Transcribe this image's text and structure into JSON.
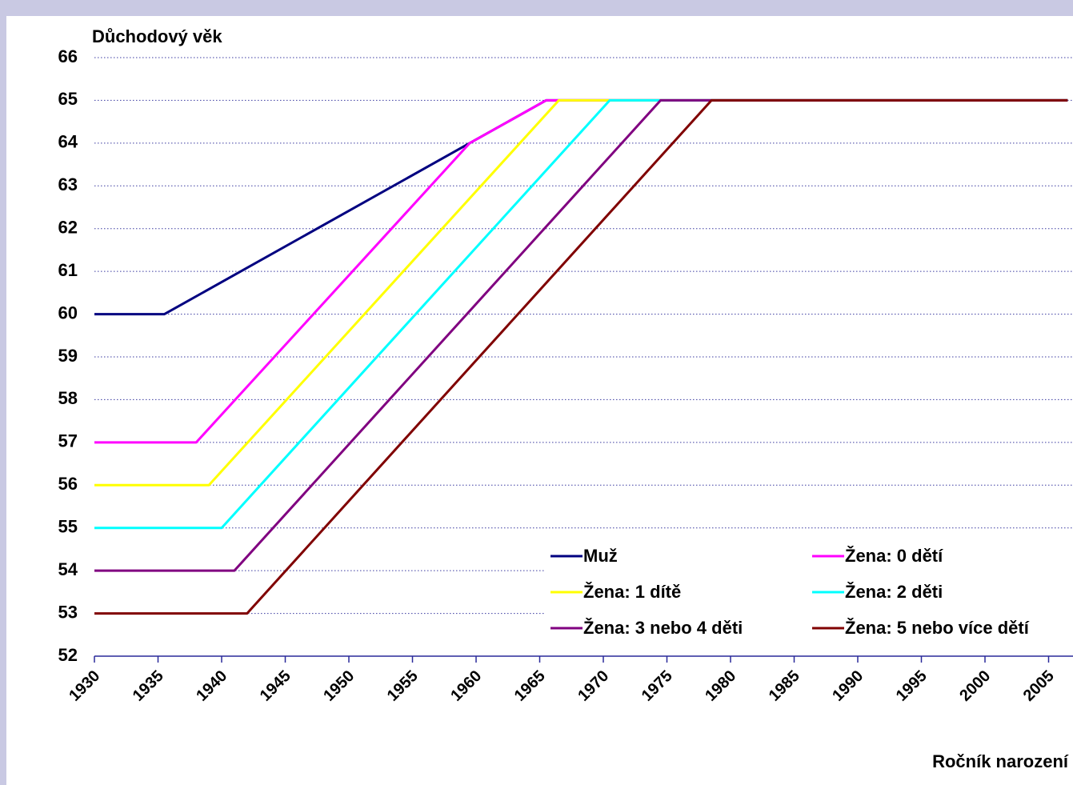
{
  "chart_data": {
    "type": "line",
    "y_title": "Důchodový věk",
    "x_title": "Ročník narození",
    "xlim": [
      1930,
      2007
    ],
    "ylim": [
      52,
      66
    ],
    "xticks": [
      1930,
      1935,
      1940,
      1945,
      1950,
      1955,
      1960,
      1965,
      1970,
      1975,
      1980,
      1985,
      1990,
      1995,
      2000,
      2005
    ],
    "yticks": [
      52,
      53,
      54,
      55,
      56,
      57,
      58,
      59,
      60,
      61,
      62,
      63,
      64,
      65,
      66
    ],
    "grid": true,
    "legend": "lower right",
    "series": [
      {
        "name": "Muž",
        "color": "#000080",
        "x": [
          1930,
          1935.5,
          1959.5,
          1965.5,
          2006.5
        ],
        "values": [
          60,
          60,
          64,
          65,
          65
        ]
      },
      {
        "name": "Žena: 0 dětí",
        "color": "#ff00ff",
        "x": [
          1930,
          1938,
          1959.5,
          1965.5,
          2006.5
        ],
        "values": [
          57,
          57,
          64,
          65,
          65
        ]
      },
      {
        "name": "Žena: 1 dítě",
        "color": "#ffff00",
        "x": [
          1930,
          1939,
          1966.5,
          2006.5
        ],
        "values": [
          56,
          56,
          65,
          65
        ]
      },
      {
        "name": "Žena: 2 děti",
        "color": "#00ffff",
        "x": [
          1930,
          1940,
          1970.5,
          2006.5
        ],
        "values": [
          55,
          55,
          65,
          65
        ]
      },
      {
        "name": "Žena: 3 nebo 4 děti",
        "color": "#800080",
        "x": [
          1930,
          1941,
          1974.5,
          2006.5
        ],
        "values": [
          54,
          54,
          65,
          65
        ]
      },
      {
        "name": "Žena: 5 nebo více dětí",
        "color": "#800000",
        "x": [
          1930,
          1942,
          1978.5,
          2006.5
        ],
        "values": [
          53,
          53,
          65,
          65
        ]
      }
    ]
  }
}
